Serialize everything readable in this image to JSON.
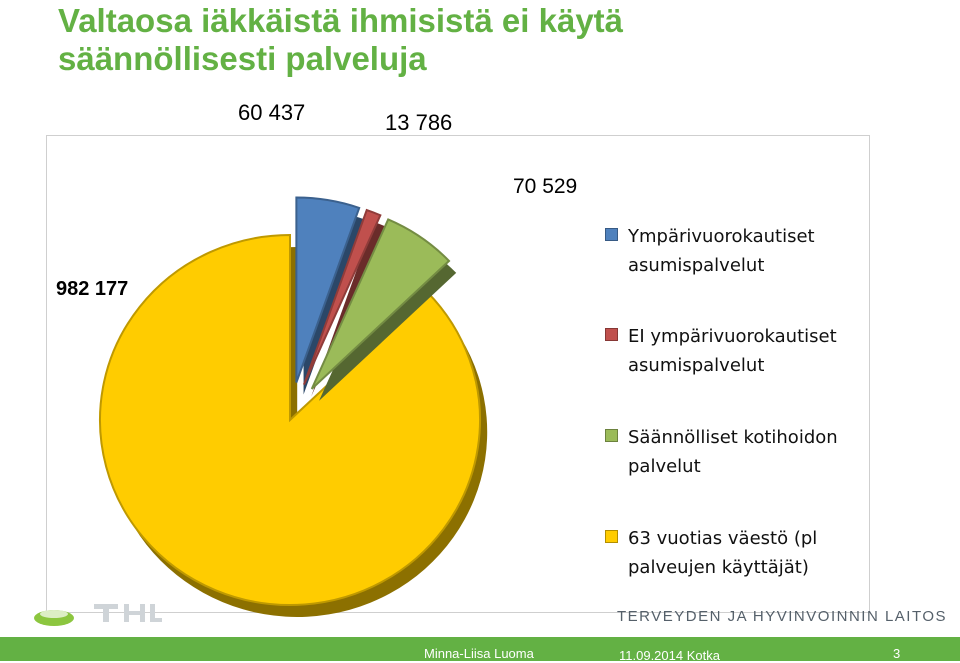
{
  "title": "Valtaosa iäkkäistä ihmisistä ei käytä säännöllisesti palveluja",
  "chart_data": {
    "type": "pie",
    "title": "",
    "exploded": true,
    "style": "3d",
    "slices": [
      {
        "label": "Ympärivuorokautiset asumispalvelut",
        "value": 60437,
        "display": "60 437",
        "color": "#4f81bd"
      },
      {
        "label": "EI ympärivuorokautiset asumispalvelut",
        "value": 13786,
        "display": "13 786",
        "color": "#c0504d"
      },
      {
        "label": "Säännölliset kotihoidon palvelut",
        "value": 70529,
        "display": "70 529",
        "color": "#9bbb59"
      },
      {
        "label": "63 vuotias väestö (pl palveujen käyttäjät)",
        "value": 982177,
        "display": "982 177",
        "color": "#ffcc00"
      }
    ],
    "legend_position": "right"
  },
  "footer": {
    "organization": "TERVEYDEN JA HYVINVOINNIN LAITOS",
    "author": "Minna-Liisa Luoma",
    "date": "11.09.2014 Kotka",
    "page": "3"
  },
  "colors": {
    "accent": "#63b144"
  }
}
